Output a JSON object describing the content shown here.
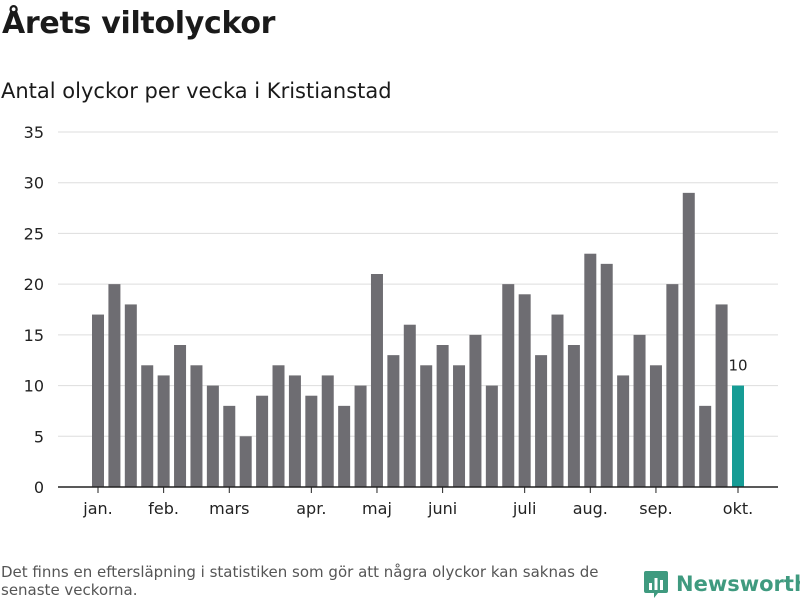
{
  "title": "Årets viltolyckor",
  "subtitle": "Antal olyckor per vecka i Kristianstad",
  "footer_note": "Det finns en eftersläpning i statistiken som gör att några olyckor kan saknas de senaste veckorna.",
  "brand": {
    "name": "Newsworthy",
    "icon": "newsworthy-logo-icon"
  },
  "colors": {
    "bar": "#6e6d72",
    "highlight": "#169c95",
    "grid": "#dddddd",
    "axis": "#222222"
  },
  "chart_data": {
    "type": "bar",
    "title": "Antal olyckor per vecka i Kristianstad",
    "xlabel": "",
    "ylabel": "",
    "ylim": [
      0,
      35
    ],
    "yticks": [
      0,
      5,
      10,
      15,
      20,
      25,
      30,
      35
    ],
    "weeks": [
      1,
      2,
      3,
      4,
      5,
      6,
      7,
      8,
      9,
      10,
      11,
      12,
      13,
      14,
      15,
      16,
      17,
      18,
      19,
      20,
      21,
      22,
      23,
      24,
      25,
      26,
      27,
      28,
      29,
      30,
      31,
      32,
      33,
      34,
      35,
      36,
      37,
      38,
      39,
      40
    ],
    "values": [
      17,
      20,
      18,
      12,
      11,
      14,
      12,
      10,
      8,
      5,
      9,
      12,
      11,
      9,
      11,
      8,
      10,
      21,
      13,
      16,
      12,
      14,
      12,
      15,
      10,
      20,
      19,
      13,
      17,
      14,
      23,
      22,
      11,
      15,
      12,
      20,
      29,
      8,
      18,
      10
    ],
    "highlight_index": 39,
    "highlight_label": "10",
    "month_ticks": [
      {
        "label": "jan.",
        "week": 1
      },
      {
        "label": "feb.",
        "week": 5
      },
      {
        "label": "mars",
        "week": 9
      },
      {
        "label": "apr.",
        "week": 14
      },
      {
        "label": "maj",
        "week": 18
      },
      {
        "label": "juni",
        "week": 22
      },
      {
        "label": "juli",
        "week": 27
      },
      {
        "label": "aug.",
        "week": 31
      },
      {
        "label": "sep.",
        "week": 35
      },
      {
        "label": "okt.",
        "week": 40
      }
    ],
    "legend": "none"
  }
}
